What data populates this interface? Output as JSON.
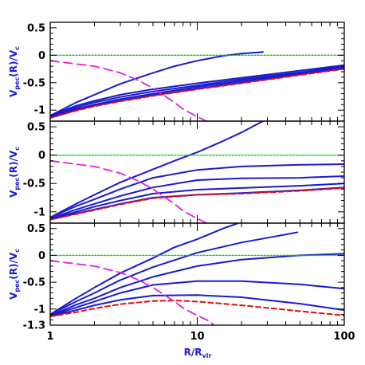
{
  "chart_data": {
    "type": "line",
    "xscale": "log",
    "xlim": [
      1,
      100
    ],
    "xlabel_main": "R/R",
    "xlabel_sub": "vir",
    "ylabel_main": "V",
    "ylabel_sub1": "pec",
    "ylabel_mid": "(R)/V",
    "ylabel_sub2": "c",
    "x_tick_labels": [
      "1",
      "10",
      "100"
    ],
    "x_tick_values": [
      1,
      10,
      100
    ],
    "colors": {
      "model": "#1a1ad0",
      "dashed_red": "#e01010",
      "dashed_magenta": "#e020e0",
      "zero": "#00cc00"
    },
    "panels": [
      {
        "ylim": [
          -1.2,
          0.6
        ],
        "y_ticks": [
          {
            "v": 0.5,
            "label": "0.5"
          },
          {
            "v": 0,
            "label": "0"
          },
          {
            "v": -0.5,
            "label": "-0.5"
          },
          {
            "v": -1,
            "label": "-1"
          }
        ],
        "series": [
          {
            "style": "blue",
            "points": [
              [
                1,
                -1.1
              ],
              [
                1.5,
                -0.86
              ],
              [
                2,
                -0.72
              ],
              [
                3,
                -0.52
              ],
              [
                5,
                -0.32
              ],
              [
                7,
                -0.2
              ],
              [
                10,
                -0.1
              ],
              [
                15,
                -0.01
              ],
              [
                20,
                0.03
              ],
              [
                28,
                0.06
              ]
            ]
          },
          {
            "style": "blue",
            "points": [
              [
                1,
                -1.1
              ],
              [
                1.5,
                -0.92
              ],
              [
                2,
                -0.83
              ],
              [
                3,
                -0.72
              ],
              [
                5,
                -0.62
              ],
              [
                10,
                -0.51
              ],
              [
                20,
                -0.41
              ],
              [
                50,
                -0.28
              ],
              [
                100,
                -0.18
              ]
            ]
          },
          {
            "style": "blue",
            "points": [
              [
                1,
                -1.12
              ],
              [
                1.5,
                -0.95
              ],
              [
                2,
                -0.86
              ],
              [
                3,
                -0.76
              ],
              [
                5,
                -0.66
              ],
              [
                10,
                -0.55
              ],
              [
                20,
                -0.44
              ],
              [
                50,
                -0.31
              ],
              [
                100,
                -0.2
              ]
            ]
          },
          {
            "style": "blue",
            "points": [
              [
                1,
                -1.13
              ],
              [
                1.5,
                -0.98
              ],
              [
                2,
                -0.9
              ],
              [
                3,
                -0.8
              ],
              [
                5,
                -0.7
              ],
              [
                10,
                -0.58
              ],
              [
                20,
                -0.47
              ],
              [
                50,
                -0.33
              ],
              [
                100,
                -0.22
              ]
            ]
          },
          {
            "style": "blue",
            "points": [
              [
                1,
                -1.14
              ],
              [
                1.5,
                -1.0
              ],
              [
                2,
                -0.92
              ],
              [
                3,
                -0.83
              ],
              [
                5,
                -0.73
              ],
              [
                10,
                -0.61
              ],
              [
                20,
                -0.5
              ],
              [
                50,
                -0.35
              ],
              [
                100,
                -0.24
              ]
            ]
          },
          {
            "style": "red",
            "points": [
              [
                1,
                -1.14
              ],
              [
                1.5,
                -1.01
              ],
              [
                2,
                -0.93
              ],
              [
                3,
                -0.84
              ],
              [
                5,
                -0.74
              ],
              [
                10,
                -0.62
              ],
              [
                20,
                -0.51
              ],
              [
                50,
                -0.36
              ],
              [
                100,
                -0.25
              ]
            ]
          },
          {
            "style": "magenta",
            "points": [
              [
                1,
                -0.1
              ],
              [
                2,
                -0.2
              ],
              [
                3,
                -0.32
              ],
              [
                4,
                -0.46
              ],
              [
                5,
                -0.6
              ],
              [
                6,
                -0.74
              ],
              [
                7,
                -0.86
              ],
              [
                8,
                -0.98
              ],
              [
                10,
                -1.12
              ],
              [
                12,
                -1.22
              ]
            ]
          },
          {
            "style": "zero",
            "points": [
              [
                1,
                0
              ],
              [
                100,
                0
              ]
            ]
          }
        ]
      },
      {
        "ylim": [
          -1.2,
          0.6
        ],
        "y_ticks": [
          {
            "v": 0.5,
            "label": "0.5"
          },
          {
            "v": 0,
            "label": "0"
          },
          {
            "v": -0.5,
            "label": "-0.5"
          },
          {
            "v": -1,
            "label": "-1"
          }
        ],
        "series": [
          {
            "style": "blue",
            "points": [
              [
                1,
                -1.1
              ],
              [
                1.5,
                -0.86
              ],
              [
                2,
                -0.7
              ],
              [
                3,
                -0.48
              ],
              [
                5,
                -0.25
              ],
              [
                7,
                -0.1
              ],
              [
                10,
                0.05
              ],
              [
                15,
                0.25
              ],
              [
                20,
                0.4
              ],
              [
                28,
                0.6
              ]
            ]
          },
          {
            "style": "blue",
            "points": [
              [
                1,
                -1.1
              ],
              [
                1.5,
                -0.9
              ],
              [
                2,
                -0.78
              ],
              [
                3,
                -0.6
              ],
              [
                5,
                -0.4
              ],
              [
                10,
                -0.26
              ],
              [
                20,
                -0.2
              ],
              [
                50,
                -0.17
              ],
              [
                100,
                -0.16
              ]
            ]
          },
          {
            "style": "blue",
            "points": [
              [
                1,
                -1.12
              ],
              [
                1.5,
                -0.96
              ],
              [
                2,
                -0.86
              ],
              [
                3,
                -0.72
              ],
              [
                5,
                -0.57
              ],
              [
                10,
                -0.44
              ],
              [
                20,
                -0.41
              ],
              [
                50,
                -0.4
              ],
              [
                100,
                -0.37
              ]
            ]
          },
          {
            "style": "blue",
            "points": [
              [
                1,
                -1.13
              ],
              [
                1.5,
                -1.0
              ],
              [
                2,
                -0.91
              ],
              [
                3,
                -0.8
              ],
              [
                5,
                -0.68
              ],
              [
                10,
                -0.61
              ],
              [
                20,
                -0.58
              ],
              [
                50,
                -0.54
              ],
              [
                100,
                -0.5
              ]
            ]
          },
          {
            "style": "blue",
            "points": [
              [
                1,
                -1.14
              ],
              [
                1.5,
                -1.03
              ],
              [
                2,
                -0.96
              ],
              [
                3,
                -0.86
              ],
              [
                5,
                -0.75
              ],
              [
                10,
                -0.7
              ],
              [
                20,
                -0.67
              ],
              [
                50,
                -0.62
              ],
              [
                100,
                -0.57
              ]
            ]
          },
          {
            "style": "red",
            "points": [
              [
                1,
                -1.14
              ],
              [
                1.5,
                -1.04
              ],
              [
                2,
                -0.97
              ],
              [
                3,
                -0.87
              ],
              [
                5,
                -0.76
              ],
              [
                10,
                -0.7
              ],
              [
                20,
                -0.68
              ],
              [
                50,
                -0.63
              ],
              [
                100,
                -0.58
              ]
            ]
          },
          {
            "style": "magenta",
            "points": [
              [
                1,
                -0.1
              ],
              [
                2,
                -0.2
              ],
              [
                3,
                -0.32
              ],
              [
                4,
                -0.46
              ],
              [
                5,
                -0.6
              ],
              [
                6,
                -0.74
              ],
              [
                7,
                -0.86
              ],
              [
                8,
                -0.98
              ],
              [
                10,
                -1.12
              ],
              [
                12,
                -1.22
              ]
            ]
          },
          {
            "style": "zero",
            "points": [
              [
                1,
                0
              ],
              [
                100,
                0
              ]
            ]
          }
        ]
      },
      {
        "ylim": [
          -1.3,
          0.6
        ],
        "y_ticks": [
          {
            "v": 0.5,
            "label": "0.5"
          },
          {
            "v": 0,
            "label": "0"
          },
          {
            "v": -0.5,
            "label": "-0.5"
          },
          {
            "v": -1,
            "label": "-1"
          },
          {
            "v": -1.3,
            "label": "-1.3"
          }
        ],
        "series": [
          {
            "style": "blue",
            "points": [
              [
                1,
                -1.1
              ],
              [
                1.5,
                -0.8
              ],
              [
                2,
                -0.6
              ],
              [
                3,
                -0.33
              ],
              [
                5,
                -0.05
              ],
              [
                7,
                0.15
              ],
              [
                10,
                0.3
              ],
              [
                15,
                0.5
              ],
              [
                19,
                0.6
              ]
            ]
          },
          {
            "style": "blue",
            "points": [
              [
                1,
                -1.1
              ],
              [
                1.5,
                -0.86
              ],
              [
                2,
                -0.7
              ],
              [
                3,
                -0.46
              ],
              [
                5,
                -0.22
              ],
              [
                10,
                0.05
              ],
              [
                20,
                0.24
              ],
              [
                35,
                0.36
              ],
              [
                48,
                0.43
              ]
            ]
          },
          {
            "style": "blue",
            "points": [
              [
                1,
                -1.12
              ],
              [
                1.5,
                -0.92
              ],
              [
                2,
                -0.8
              ],
              [
                3,
                -0.6
              ],
              [
                5,
                -0.4
              ],
              [
                10,
                -0.2
              ],
              [
                20,
                -0.08
              ],
              [
                50,
                0.0
              ],
              [
                100,
                0.03
              ]
            ]
          },
          {
            "style": "blue",
            "points": [
              [
                1,
                -1.13
              ],
              [
                1.5,
                -0.97
              ],
              [
                2,
                -0.86
              ],
              [
                3,
                -0.7
              ],
              [
                5,
                -0.55
              ],
              [
                10,
                -0.48
              ],
              [
                20,
                -0.48
              ],
              [
                50,
                -0.54
              ],
              [
                100,
                -0.62
              ]
            ]
          },
          {
            "style": "blue",
            "points": [
              [
                1,
                -1.14
              ],
              [
                1.5,
                -1.02
              ],
              [
                2,
                -0.93
              ],
              [
                3,
                -0.83
              ],
              [
                5,
                -0.75
              ],
              [
                10,
                -0.74
              ],
              [
                20,
                -0.78
              ],
              [
                50,
                -0.9
              ],
              [
                100,
                -1.02
              ]
            ]
          },
          {
            "style": "red",
            "points": [
              [
                1,
                -1.14
              ],
              [
                1.5,
                -1.06
              ],
              [
                2,
                -0.99
              ],
              [
                3,
                -0.91
              ],
              [
                5,
                -0.85
              ],
              [
                7,
                -0.84
              ],
              [
                10,
                -0.86
              ],
              [
                20,
                -0.93
              ],
              [
                50,
                -1.04
              ],
              [
                100,
                -1.12
              ]
            ]
          },
          {
            "style": "magenta",
            "points": [
              [
                1,
                -0.1
              ],
              [
                2,
                -0.2
              ],
              [
                3,
                -0.32
              ],
              [
                4,
                -0.46
              ],
              [
                5,
                -0.6
              ],
              [
                6,
                -0.74
              ],
              [
                7,
                -0.86
              ],
              [
                8,
                -0.98
              ],
              [
                10,
                -1.12
              ],
              [
                12,
                -1.22
              ],
              [
                13,
                -1.3
              ]
            ]
          },
          {
            "style": "zero",
            "points": [
              [
                1,
                0
              ],
              [
                100,
                0
              ]
            ]
          }
        ]
      }
    ]
  }
}
